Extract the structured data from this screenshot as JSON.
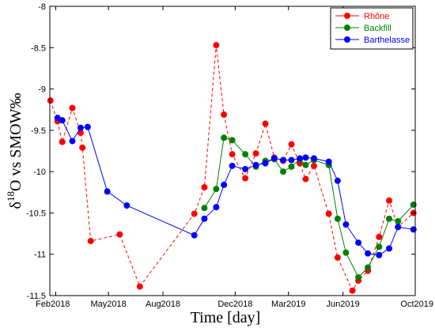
{
  "chart_data": {
    "type": "line",
    "xlabel": "Time [day]",
    "ylabel": "δ18O vs SMOW‰",
    "ylim": [
      -11.5,
      -8
    ],
    "xlim": [
      "2018-01-22",
      "2019-10-01"
    ],
    "yticks": [
      -8,
      -8.5,
      -9,
      -9.5,
      -10,
      -10.5,
      -11,
      -11.5
    ],
    "xticks": [
      {
        "date": "2018-02-01",
        "label": "Feb2018"
      },
      {
        "date": "2018-05-01",
        "label": "May2018"
      },
      {
        "date": "2018-08-01",
        "label": "Aug2018"
      },
      {
        "date": "2018-12-01",
        "label": "Dec2018"
      },
      {
        "date": "2019-03-01",
        "label": "Mar2019"
      },
      {
        "date": "2019-06-01",
        "label": "Jun2019"
      },
      {
        "date": "2019-10-01",
        "label": "Oct2019"
      }
    ],
    "legend_position": "top-right",
    "grid": false,
    "series": [
      {
        "name": "Rhône",
        "color": "#ff0000",
        "dashed": true,
        "points": [
          [
            "2018-01-23",
            -9.14
          ],
          [
            "2018-02-04",
            -9.39
          ],
          [
            "2018-02-12",
            -9.64
          ],
          [
            "2018-03-01",
            -9.23
          ],
          [
            "2018-03-15",
            -9.53
          ],
          [
            "2018-03-18",
            -9.71
          ],
          [
            "2018-04-01",
            -10.84
          ],
          [
            "2018-05-20",
            -10.76
          ],
          [
            "2018-06-23",
            -11.39
          ],
          [
            "2018-09-23",
            -10.51
          ],
          [
            "2018-10-10",
            -10.19
          ],
          [
            "2018-10-30",
            -8.47
          ],
          [
            "2018-11-12",
            -9.31
          ],
          [
            "2018-11-26",
            -9.79
          ],
          [
            "2018-12-18",
            -10.08
          ],
          [
            "2019-01-05",
            -9.78
          ],
          [
            "2019-01-21",
            -9.42
          ],
          [
            "2019-02-05",
            -9.83
          ],
          [
            "2019-02-20",
            -9.87
          ],
          [
            "2019-03-06",
            -9.67
          ],
          [
            "2019-03-20",
            -9.9
          ],
          [
            "2019-03-30",
            -10.09
          ],
          [
            "2019-04-13",
            -9.93
          ],
          [
            "2019-05-08",
            -10.51
          ],
          [
            "2019-05-23",
            -11.04
          ],
          [
            "2019-06-17",
            -11.44
          ],
          [
            "2019-06-27",
            -11.32
          ],
          [
            "2019-07-13",
            -11.2
          ],
          [
            "2019-08-01",
            -10.79
          ],
          [
            "2019-08-18",
            -10.35
          ],
          [
            "2019-09-02",
            -10.67
          ],
          [
            "2019-09-28",
            -10.5
          ]
        ]
      },
      {
        "name": "Backfill",
        "color": "#008000",
        "dashed": false,
        "points": [
          [
            "2018-10-10",
            -10.44
          ],
          [
            "2018-10-30",
            -10.21
          ],
          [
            "2018-11-12",
            -9.59
          ],
          [
            "2018-11-26",
            -9.62
          ],
          [
            "2018-12-18",
            -9.79
          ],
          [
            "2019-01-05",
            -9.94
          ],
          [
            "2019-01-21",
            -9.87
          ],
          [
            "2019-02-05",
            -9.85
          ],
          [
            "2019-02-20",
            -10.0
          ],
          [
            "2019-03-06",
            -9.94
          ],
          [
            "2019-03-20",
            -9.85
          ],
          [
            "2019-03-30",
            -9.92
          ],
          [
            "2019-04-13",
            -9.86
          ],
          [
            "2019-05-08",
            -9.92
          ],
          [
            "2019-05-23",
            -10.57
          ],
          [
            "2019-06-06",
            -10.98
          ],
          [
            "2019-06-27",
            -11.28
          ],
          [
            "2019-07-13",
            -11.16
          ],
          [
            "2019-08-01",
            -10.91
          ],
          [
            "2019-08-18",
            -10.57
          ],
          [
            "2019-09-02",
            -10.6
          ],
          [
            "2019-09-28",
            -10.4
          ]
        ]
      },
      {
        "name": "Barthelasse",
        "color": "#0000ff",
        "dashed": false,
        "points": [
          [
            "2018-02-04",
            -9.35
          ],
          [
            "2018-02-12",
            -9.38
          ],
          [
            "2018-03-01",
            -9.63
          ],
          [
            "2018-03-15",
            -9.47
          ],
          [
            "2018-03-27",
            -9.46
          ],
          [
            "2018-04-29",
            -10.24
          ],
          [
            "2018-06-01",
            -10.41
          ],
          [
            "2018-09-23",
            -10.77
          ],
          [
            "2018-10-10",
            -10.57
          ],
          [
            "2018-10-30",
            -10.43
          ],
          [
            "2018-11-12",
            -10.16
          ],
          [
            "2018-11-26",
            -9.93
          ],
          [
            "2018-12-18",
            -9.97
          ],
          [
            "2019-01-05",
            -9.92
          ],
          [
            "2019-01-21",
            -9.9
          ],
          [
            "2019-02-05",
            -9.84
          ],
          [
            "2019-02-20",
            -9.86
          ],
          [
            "2019-03-06",
            -9.86
          ],
          [
            "2019-03-20",
            -9.84
          ],
          [
            "2019-03-30",
            -9.83
          ],
          [
            "2019-04-13",
            -9.84
          ],
          [
            "2019-05-08",
            -9.88
          ],
          [
            "2019-05-23",
            -10.11
          ],
          [
            "2019-06-06",
            -10.64
          ],
          [
            "2019-06-27",
            -10.86
          ],
          [
            "2019-07-13",
            -10.99
          ],
          [
            "2019-08-01",
            -11.01
          ],
          [
            "2019-08-18",
            -10.93
          ],
          [
            "2019-09-02",
            -10.67
          ],
          [
            "2019-09-28",
            -10.7
          ]
        ]
      }
    ]
  }
}
